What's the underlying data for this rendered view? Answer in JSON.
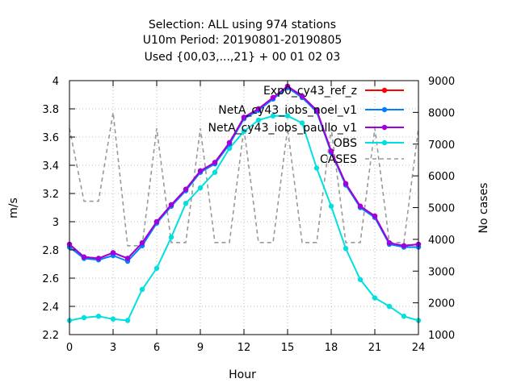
{
  "chart_data": {
    "type": "line",
    "title_lines": [
      "Selection: ALL using   974 stations",
      "U10m   Period: 20190801-20190805",
      "Used {00,03,...,21} + 00 01 02 03"
    ],
    "xlabel": "Hour",
    "ylabel": "m/s",
    "y2label": "No cases",
    "xlim": [
      0,
      24
    ],
    "ylim": [
      2.2,
      4.0
    ],
    "y2lim": [
      1000,
      9000
    ],
    "xticks": [
      0,
      3,
      6,
      9,
      12,
      15,
      18,
      21,
      24
    ],
    "yticks": [
      2.2,
      2.4,
      2.6,
      2.8,
      3.0,
      3.2,
      3.4,
      3.6,
      3.8,
      4.0
    ],
    "ytick_labels": [
      "2.2",
      "2.4",
      "2.6",
      "2.8",
      "3",
      "3.2",
      "3.4",
      "3.6",
      "3.8",
      "4"
    ],
    "y2ticks": [
      1000,
      2000,
      3000,
      4000,
      5000,
      6000,
      7000,
      8000,
      9000
    ],
    "grid": "dotted",
    "legend_position": "top-right",
    "x": [
      0,
      1,
      2,
      3,
      4,
      5,
      6,
      7,
      8,
      9,
      10,
      11,
      12,
      13,
      14,
      15,
      16,
      17,
      18,
      19,
      20,
      21,
      22,
      23,
      24
    ],
    "series": [
      {
        "name": "Exp0_cy43_ref_z",
        "color": "#ff0000",
        "axis": "left",
        "style": "line-points",
        "values": [
          2.84,
          2.75,
          2.74,
          2.78,
          2.74,
          2.85,
          3.0,
          3.12,
          3.23,
          3.36,
          3.42,
          3.56,
          3.74,
          3.8,
          3.88,
          3.96,
          3.89,
          3.79,
          3.5,
          3.27,
          3.11,
          3.04,
          2.85,
          2.83,
          2.84
        ]
      },
      {
        "name": "NetA_cy43_iobs_noel_v1",
        "color": "#0080ff",
        "axis": "left",
        "style": "line-points",
        "values": [
          2.82,
          2.74,
          2.73,
          2.76,
          2.72,
          2.83,
          2.99,
          3.11,
          3.22,
          3.35,
          3.41,
          3.55,
          3.73,
          3.79,
          3.87,
          3.95,
          3.88,
          3.78,
          3.49,
          3.26,
          3.1,
          3.03,
          2.84,
          2.82,
          2.82
        ]
      },
      {
        "name": "NetA_cy43_iobs_paullo_v1",
        "color": "#a000e0",
        "axis": "left",
        "style": "line-points",
        "values": [
          2.84,
          2.75,
          2.74,
          2.78,
          2.74,
          2.85,
          3.0,
          3.12,
          3.23,
          3.36,
          3.42,
          3.56,
          3.74,
          3.8,
          3.88,
          3.96,
          3.89,
          3.79,
          3.5,
          3.27,
          3.11,
          3.04,
          2.85,
          2.83,
          2.84
        ]
      },
      {
        "name": "OBS",
        "color": "#00e0e0",
        "axis": "left",
        "style": "line-points",
        "values": [
          2.3,
          2.32,
          2.33,
          2.31,
          2.3,
          2.52,
          2.67,
          2.89,
          3.13,
          3.24,
          3.35,
          3.52,
          3.64,
          3.72,
          3.75,
          3.75,
          3.7,
          3.38,
          3.11,
          2.81,
          2.59,
          2.46,
          2.4,
          2.33,
          2.3
        ]
      },
      {
        "name": "CASES",
        "color": "#999999",
        "axis": "right",
        "style": "dashed",
        "values": [
          7500,
          5200,
          5200,
          8000,
          3800,
          3800,
          7500,
          3900,
          3900,
          7500,
          3900,
          3900,
          7500,
          3900,
          3900,
          7500,
          3900,
          3900,
          7500,
          3900,
          3900,
          7500,
          3900,
          3900,
          7500
        ]
      }
    ]
  }
}
